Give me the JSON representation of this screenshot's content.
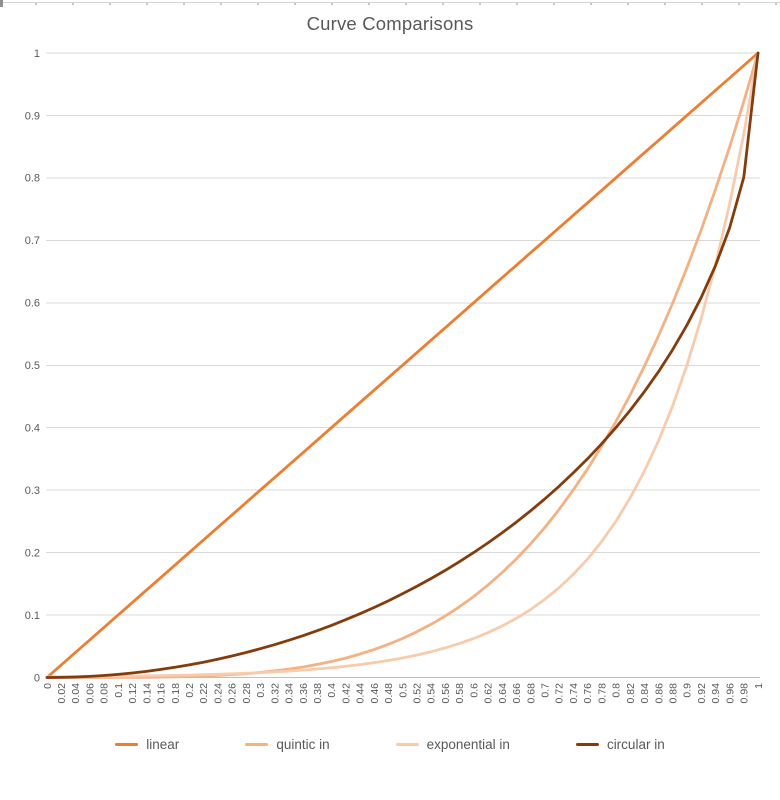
{
  "chart": {
    "title_color": "#595959",
    "axis_label_color": "#595959",
    "gridline_color": "#d9d9d9",
    "axis_line_color": "#bfbfbf",
    "background": "#ffffff"
  },
  "chart_data": {
    "type": "line",
    "title": "Curve Comparisons",
    "xlabel": "",
    "ylabel": "",
    "xlim": [
      0,
      1
    ],
    "ylim": [
      0,
      1
    ],
    "grid": "horizontal",
    "legend_position": "bottom",
    "y_ticks": [
      "0",
      "0.1",
      "0.2",
      "0.3",
      "0.4",
      "0.5",
      "0.6",
      "0.7",
      "0.8",
      "0.9",
      "1"
    ],
    "categories": [
      "0",
      "0.02",
      "0.04",
      "0.06",
      "0.08",
      "0.1",
      "0.12",
      "0.14",
      "0.16",
      "0.18",
      "0.2",
      "0.22",
      "0.24",
      "0.26",
      "0.28",
      "0.3",
      "0.32",
      "0.34",
      "0.36",
      "0.38",
      "0.4",
      "0.42",
      "0.44",
      "0.46",
      "0.48",
      "0.5",
      "0.52",
      "0.54",
      "0.56",
      "0.58",
      "0.6",
      "0.62",
      "0.64",
      "0.66",
      "0.68",
      "0.7",
      "0.72",
      "0.74",
      "0.76",
      "0.78",
      "0.8",
      "0.82",
      "0.84",
      "0.86",
      "0.88",
      "0.9",
      "0.92",
      "0.94",
      "0.96",
      "0.98",
      "1"
    ],
    "series": [
      {
        "name": "linear",
        "color": "#ED7D31",
        "values": [
          0,
          0.02,
          0.04,
          0.06,
          0.08,
          0.1,
          0.12,
          0.14,
          0.16,
          0.18,
          0.2,
          0.22,
          0.24,
          0.26,
          0.28,
          0.3,
          0.32,
          0.34,
          0.36,
          0.38,
          0.4,
          0.42,
          0.44,
          0.46,
          0.48,
          0.5,
          0.52,
          0.54,
          0.56,
          0.58,
          0.6,
          0.62,
          0.64,
          0.66,
          0.68,
          0.7,
          0.72,
          0.74,
          0.76,
          0.78,
          0.8,
          0.82,
          0.84,
          0.86,
          0.88,
          0.9,
          0.92,
          0.94,
          0.96,
          0.98,
          1
        ]
      },
      {
        "name": "quintic in",
        "color": "#F4B183",
        "values": [
          0,
          0,
          0,
          0,
          0,
          0.0001,
          0.0002,
          0.0004,
          0.0007,
          0.001,
          0.0016,
          0.0023,
          0.0033,
          0.0046,
          0.0061,
          0.0081,
          0.0105,
          0.0134,
          0.0168,
          0.0209,
          0.0256,
          0.0311,
          0.0375,
          0.0448,
          0.0531,
          0.0625,
          0.0731,
          0.085,
          0.0983,
          0.1132,
          0.1296,
          0.1478,
          0.1678,
          0.1897,
          0.2138,
          0.2401,
          0.2687,
          0.2999,
          0.3336,
          0.3702,
          0.4096,
          0.4521,
          0.4979,
          0.547,
          0.5997,
          0.6561,
          0.7164,
          0.7808,
          0.8493,
          0.9224,
          1
        ]
      },
      {
        "name": "exponential in",
        "color": "#F8CBAD",
        "values": [
          0.001,
          0.0011,
          0.0013,
          0.0015,
          0.0017,
          0.002,
          0.0022,
          0.0026,
          0.003,
          0.0034,
          0.0039,
          0.0045,
          0.0052,
          0.0059,
          0.0068,
          0.0078,
          0.009,
          0.0103,
          0.0118,
          0.0136,
          0.0156,
          0.0179,
          0.0206,
          0.0237,
          0.0272,
          0.0312,
          0.0359,
          0.0412,
          0.0474,
          0.0544,
          0.0625,
          0.0718,
          0.0825,
          0.0947,
          0.1088,
          0.125,
          0.1435,
          0.1649,
          0.1895,
          0.2176,
          0.25,
          0.2872,
          0.3299,
          0.379,
          0.4353,
          0.5,
          0.5743,
          0.6598,
          0.7579,
          0.8706,
          1
        ]
      },
      {
        "name": "circular in",
        "color": "#843C0C",
        "values": [
          0,
          0.0002,
          0.0008,
          0.0018,
          0.0032,
          0.005,
          0.0072,
          0.0098,
          0.0129,
          0.0163,
          0.0202,
          0.0245,
          0.0292,
          0.0344,
          0.04,
          0.0461,
          0.0526,
          0.0596,
          0.067,
          0.075,
          0.0835,
          0.0925,
          0.102,
          0.1121,
          0.1227,
          0.134,
          0.1458,
          0.1583,
          0.1715,
          0.1854,
          0.2,
          0.2154,
          0.2316,
          0.2487,
          0.2668,
          0.2859,
          0.306,
          0.3274,
          0.3501,
          0.3742,
          0.4,
          0.4276,
          0.4574,
          0.4897,
          0.525,
          0.5641,
          0.6081,
          0.6588,
          0.72,
          0.801,
          1
        ]
      }
    ]
  }
}
